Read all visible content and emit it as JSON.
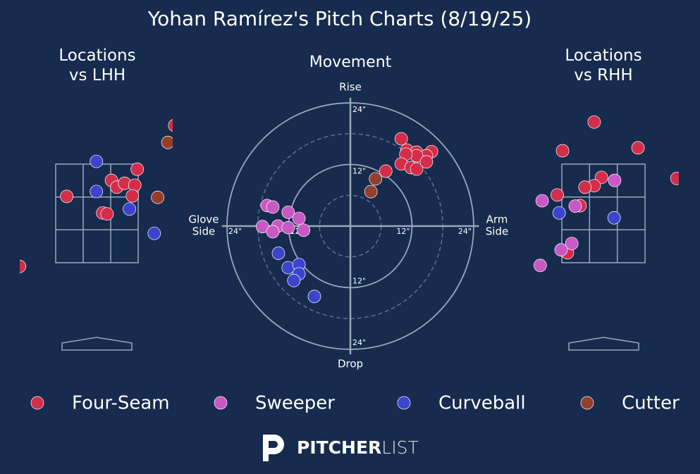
{
  "title": "Yohan Ramírez's Pitch Charts (8/19/25)",
  "chart_data": [
    {
      "type": "location",
      "title": "Locations vs LHH",
      "xlim": [
        -16,
        16
      ],
      "ylim": [
        -2,
        52
      ],
      "series": [
        {
          "name": "Four-Seam",
          "color": "#d22d49",
          "x": [
            16.0,
            8.3,
            -6.2,
            3.0,
            4.1,
            5.7,
            7.8,
            7.3,
            1.2,
            2.1,
            -15.9
          ],
          "y": [
            45.2,
            36.2,
            30.6,
            33.9,
            32.5,
            33.3,
            32.9,
            30.7,
            27.2,
            27.0,
            16.2
          ]
        },
        {
          "name": "Curveball",
          "color": "#3c44cd",
          "x": [
            -0.1,
            -0.1,
            6.7,
            11.8
          ],
          "y": [
            37.8,
            31.6,
            28.0,
            23.0
          ]
        },
        {
          "name": "Cutter",
          "color": "#933f2c",
          "x": [
            14.6,
            12.5
          ],
          "y": [
            41.7,
            30.4
          ]
        }
      ]
    },
    {
      "type": "movement",
      "title": "Movement",
      "axis_labels": {
        "top": "Rise",
        "bottom": "Drop",
        "left": [
          "Glove",
          "Side"
        ],
        "right": [
          "Arm",
          "Side"
        ]
      },
      "xlim": [
        -25,
        25
      ],
      "ylim": [
        -25,
        25
      ],
      "rticks": [
        {
          "value": 12,
          "label": "12\""
        },
        {
          "value": 24,
          "label": "24\""
        }
      ],
      "minor_rticks": [
        6,
        18
      ],
      "series": [
        {
          "name": "Four-Seam",
          "color": "#d22d49",
          "x": [
            9.9,
            11.0,
            12.9,
            15.8,
            14.8,
            12.9,
            10.8,
            9.9,
            11.8,
            12.9,
            14.8,
            6.9
          ],
          "y": [
            17.0,
            14.8,
            14.4,
            14.5,
            13.7,
            13.7,
            14.0,
            12.1,
            11.4,
            11.1,
            12.5,
            10.7
          ]
        },
        {
          "name": "Sweeper",
          "color": "#c957c4",
          "x": [
            -16.2,
            -15.1,
            -12.1,
            -10.0,
            -14.1,
            -17.1,
            -15.1,
            -12.1,
            -9.1
          ],
          "y": [
            4.0,
            3.7,
            2.7,
            1.5,
            0.0,
            -0.1,
            -1.1,
            -0.3,
            -0.8
          ]
        },
        {
          "name": "Curveball",
          "color": "#3c44cd",
          "x": [
            -14.0,
            -12.1,
            -10.0,
            -10.0,
            -11.0,
            -7.0
          ],
          "y": [
            -5.3,
            -8.1,
            -7.5,
            -9.3,
            -10.6,
            -13.7
          ]
        },
        {
          "name": "Cutter",
          "color": "#933f2c",
          "x": [
            4.9,
            4.0
          ],
          "y": [
            9.2,
            6.7
          ]
        }
      ]
    },
    {
      "type": "location",
      "title": "Locations vs RHH",
      "xlim": [
        -16,
        16
      ],
      "ylim": [
        -2,
        52
      ],
      "series": [
        {
          "name": "Four-Seam",
          "color": "#d22d49",
          "x": [
            -1.9,
            -8.4,
            7.1,
            15.1,
            -0.4,
            -1.9,
            -3.8,
            -9.5,
            -4.8,
            -7.4
          ],
          "y": [
            45.9,
            40.0,
            40.6,
            34.3,
            34.5,
            32.8,
            32.5,
            30.9,
            28.7,
            19.0
          ]
        },
        {
          "name": "Sweeper",
          "color": "#c957c4",
          "x": [
            2.3,
            -12.6,
            -5.8,
            -6.5,
            -8.7,
            -13.0
          ],
          "y": [
            33.9,
            29.7,
            28.6,
            20.9,
            19.6,
            16.4
          ]
        },
        {
          "name": "Curveball",
          "color": "#3c44cd",
          "x": [
            -9.1,
            2.2
          ],
          "y": [
            27.2,
            26.2
          ]
        }
      ]
    }
  ],
  "legend": {
    "position": "bottom"
  },
  "footer": {
    "brand_bold": "PITCHER",
    "brand_light": "LIST"
  }
}
